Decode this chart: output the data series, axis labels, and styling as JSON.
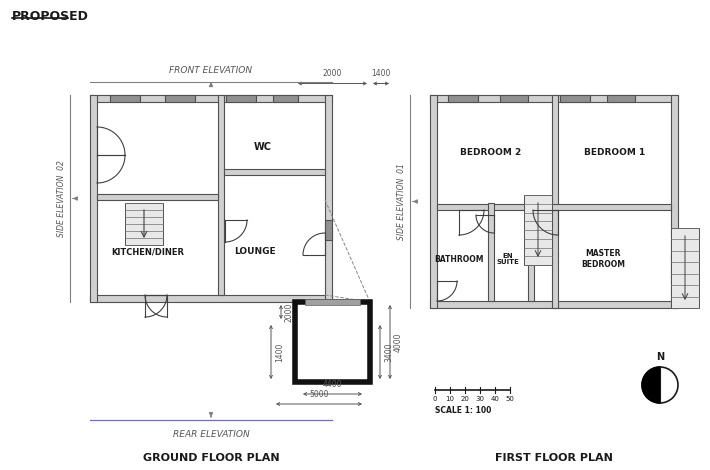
{
  "title": "PROPOSED",
  "ground_floor_label": "GROUND FLOOR PLAN",
  "first_floor_label": "FIRST FLOOR PLAN",
  "front_elevation": "FRONT ELEVATION",
  "rear_elevation": "REAR ELEVATION",
  "side_elevation_02": "SIDE ELEVATION  02",
  "side_elevation_01": "SIDE ELEVATION  01",
  "bg_color": "#ffffff",
  "wall_fill": "#d0d0d0",
  "wall_edge": "#505050",
  "win_fill": "#909090",
  "scale_text": "SCALE 1: 100",
  "dim_color": "#404040",
  "gf_rooms": [
    "KITCHEN/DINER",
    "LOUNGE",
    "WC"
  ],
  "ff_rooms": [
    "BEDROOM 2",
    "BEDROOM 1",
    "BATHROOM",
    "EN\nSUITE",
    "MASTER\nBEDROOM"
  ]
}
